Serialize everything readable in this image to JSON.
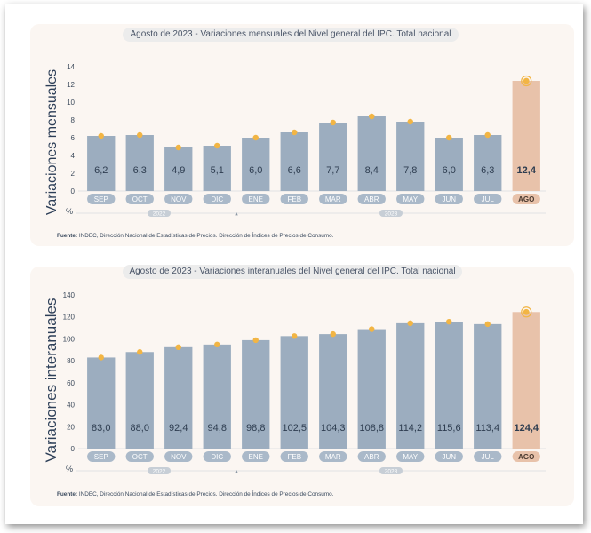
{
  "source_label": "Fuente:",
  "source_text": "INDEC, Dirección Nacional de Estadísticas de Precios. Dirección de Índices de Precios de Consumo.",
  "percent_sign": "%",
  "colors": {
    "bar": "#9cadbf",
    "highlight_bar": "#e8c2aa",
    "marker": "#f2b544",
    "month_pill": "#aab9c9",
    "highlight_pill": "#e8c2aa",
    "year_pill": "#c7ced6",
    "axis_text": "#3d4b5c"
  },
  "chart_data": [
    {
      "type": "bar",
      "title_prefix": "Agosto de 2023 - ",
      "title_main": "Variaciones mensuales del Nivel general del IPC. Total nacional",
      "side_label": "Variaciones mensuales",
      "categories": [
        "SEP",
        "OCT",
        "NOV",
        "DIC",
        "ENE",
        "FEB",
        "MAR",
        "ABR",
        "MAY",
        "JUN",
        "JUL",
        "AGO"
      ],
      "values": [
        6.2,
        6.3,
        4.9,
        5.1,
        6.0,
        6.6,
        7.7,
        8.4,
        7.8,
        6.0,
        6.3,
        12.4
      ],
      "value_labels": [
        "6,2",
        "6,3",
        "4,9",
        "5,1",
        "6,0",
        "6,6",
        "7,7",
        "8,4",
        "7,8",
        "6,0",
        "6,3",
        "12,4"
      ],
      "highlight_index": 11,
      "ylim": [
        0,
        14
      ],
      "yticks": [
        0,
        2,
        4,
        6,
        8,
        10,
        12,
        14
      ],
      "years": [
        {
          "label": "2022",
          "from": 0,
          "to": 3
        },
        {
          "label": "2023",
          "from": 4,
          "to": 11
        }
      ]
    },
    {
      "type": "bar",
      "title_prefix": "Agosto de 2023 - ",
      "title_main": "Variaciones interanuales del Nivel general del IPC. Total nacional",
      "side_label": "Variaciones interanuales",
      "categories": [
        "SEP",
        "OCT",
        "NOV",
        "DIC",
        "ENE",
        "FEB",
        "MAR",
        "ABR",
        "MAY",
        "JUN",
        "JUL",
        "AGO"
      ],
      "values": [
        83.0,
        88.0,
        92.4,
        94.8,
        98.8,
        102.5,
        104.3,
        108.8,
        114.2,
        115.6,
        113.4,
        124.4
      ],
      "value_labels": [
        "83,0",
        "88,0",
        "92,4",
        "94,8",
        "98,8",
        "102,5",
        "104,3",
        "108,8",
        "114,2",
        "115,6",
        "113,4",
        "124,4"
      ],
      "highlight_index": 11,
      "ylim": [
        0,
        140
      ],
      "yticks": [
        0,
        20,
        40,
        60,
        80,
        100,
        120,
        140
      ],
      "years": [
        {
          "label": "2022",
          "from": 0,
          "to": 3
        },
        {
          "label": "2023",
          "from": 4,
          "to": 11
        }
      ]
    }
  ]
}
